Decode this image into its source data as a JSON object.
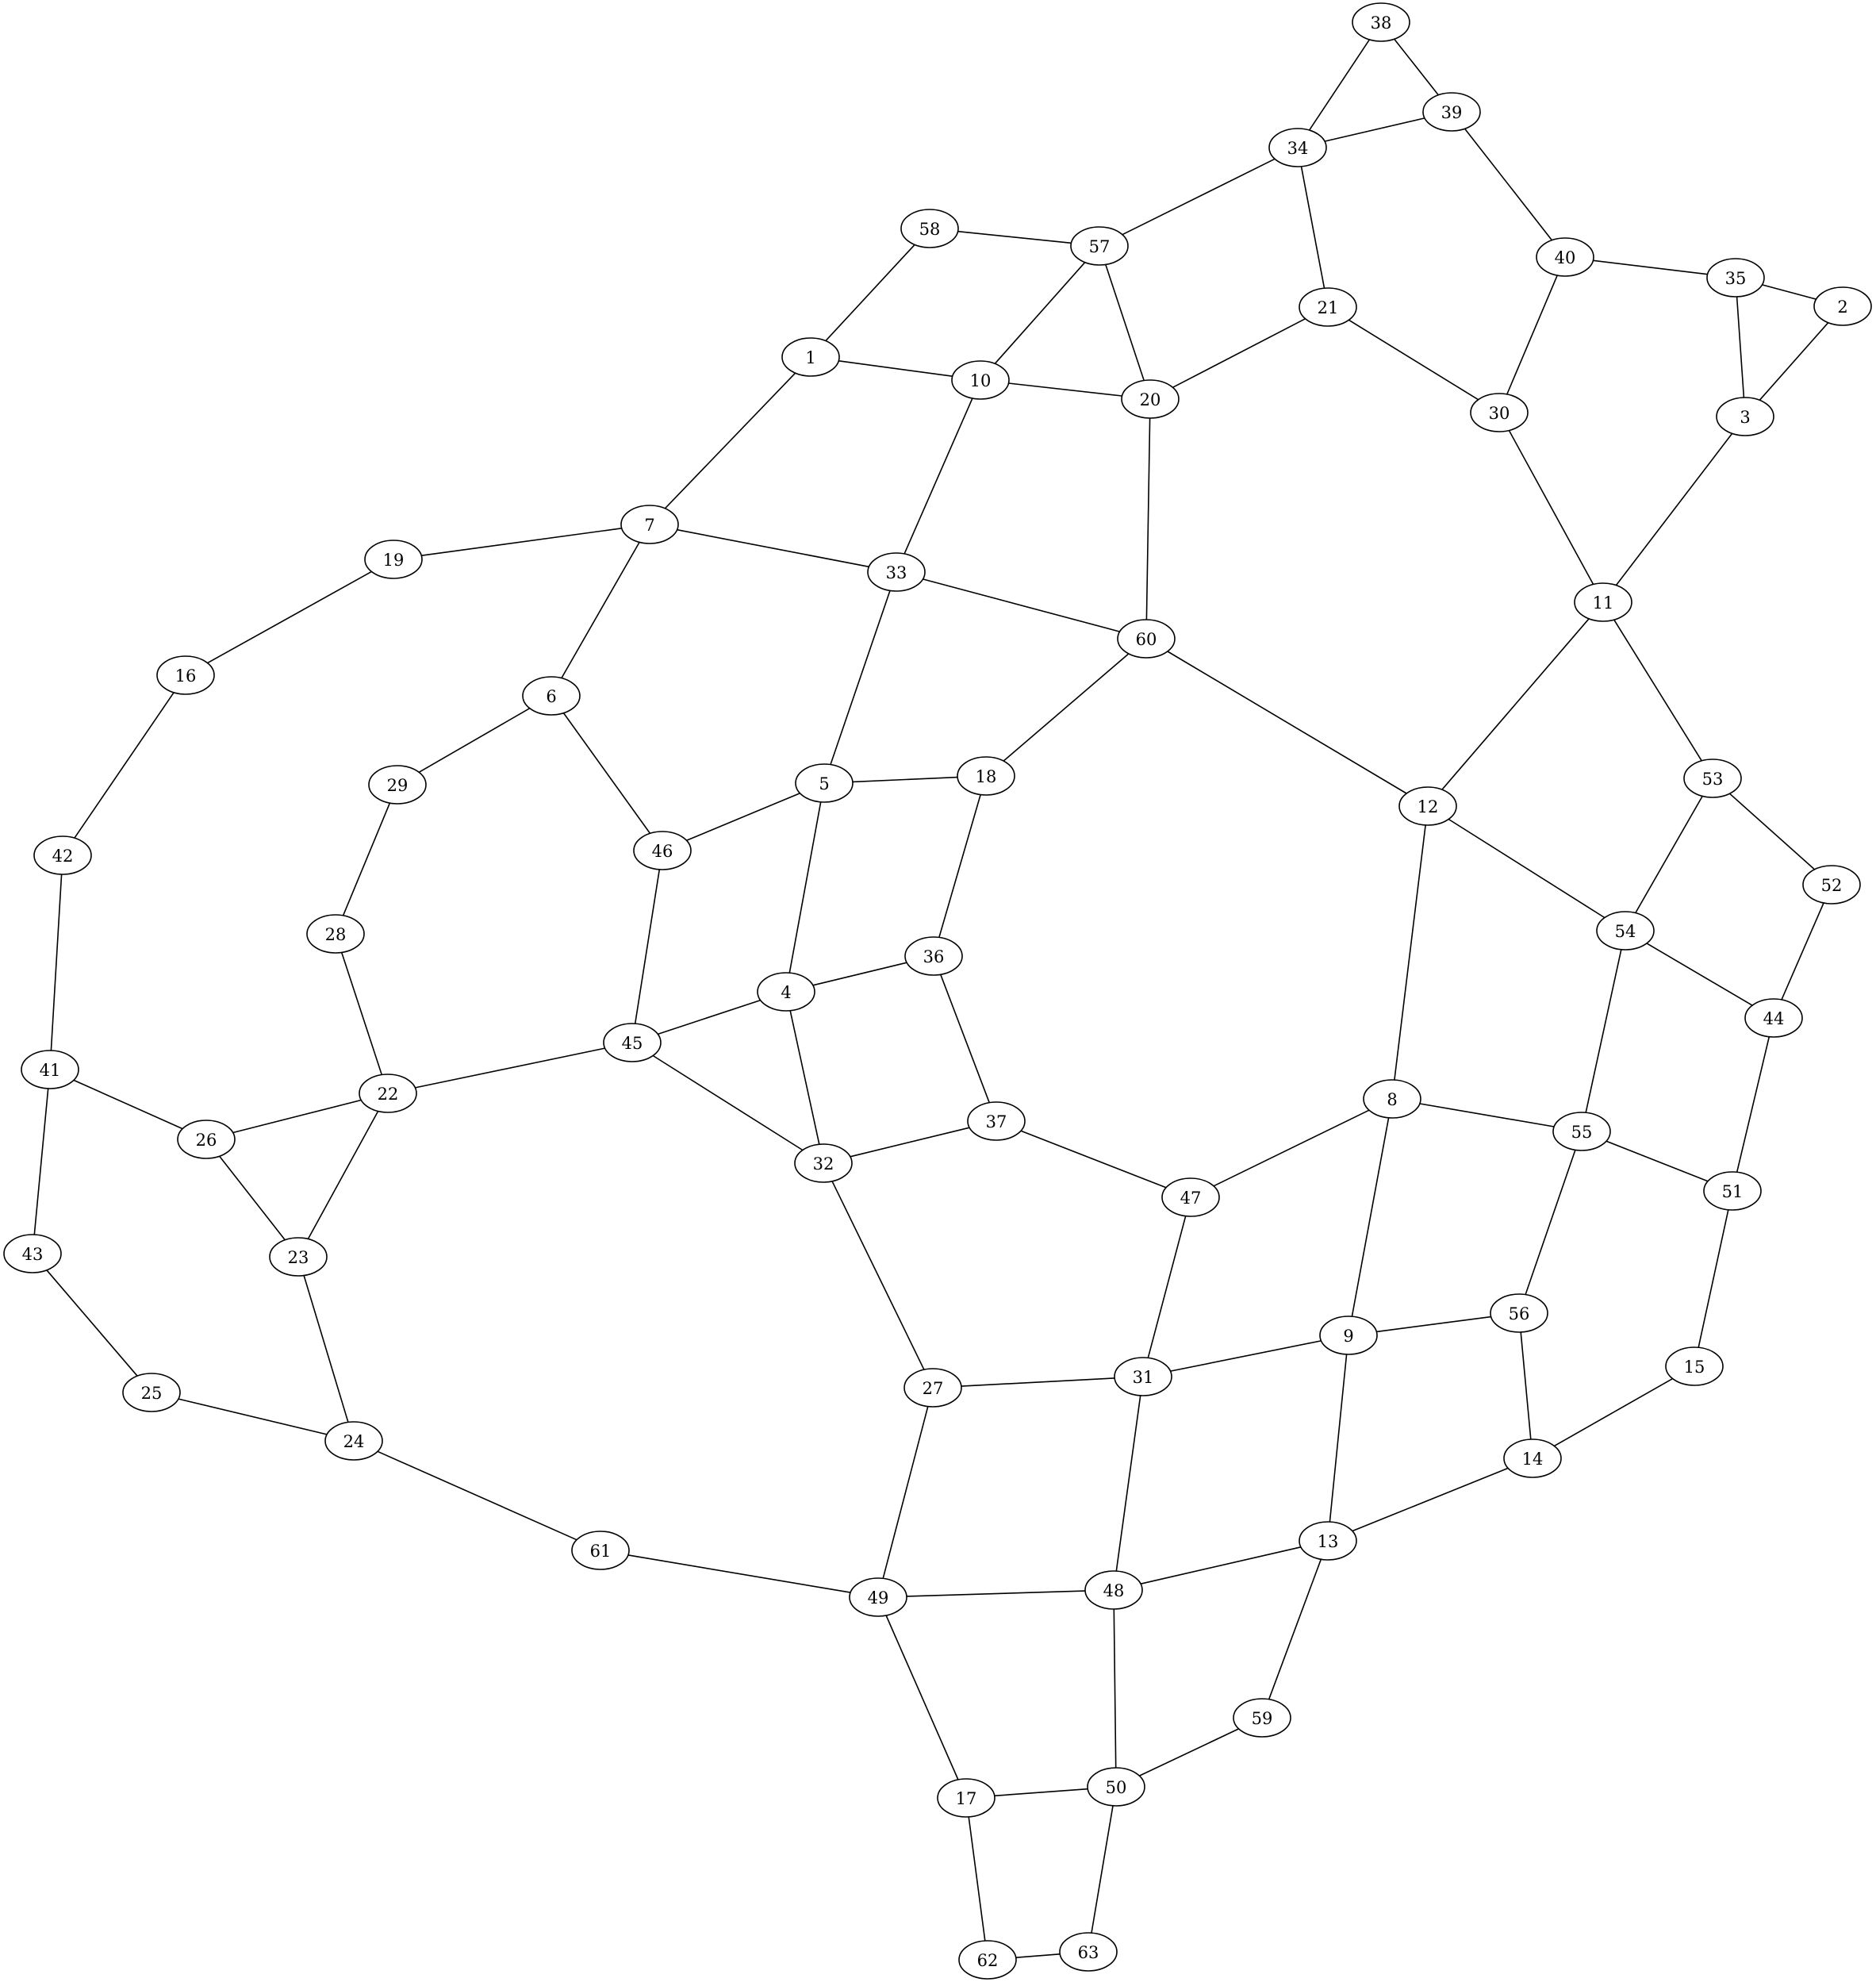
{
  "graph": {
    "nodes": [
      "1",
      "2",
      "3",
      "4",
      "5",
      "6",
      "7",
      "8",
      "9",
      "10",
      "11",
      "12",
      "13",
      "14",
      "15",
      "16",
      "17",
      "18",
      "19",
      "20",
      "21",
      "22",
      "23",
      "24",
      "25",
      "26",
      "27",
      "28",
      "29",
      "30",
      "31",
      "32",
      "33",
      "34",
      "35",
      "36",
      "37",
      "38",
      "39",
      "40",
      "41",
      "42",
      "43",
      "44",
      "45",
      "46",
      "47",
      "48",
      "49",
      "50",
      "51",
      "52",
      "53",
      "54",
      "55",
      "56",
      "57",
      "58",
      "59",
      "60",
      "61",
      "62",
      "63"
    ],
    "edges": [
      [
        "38",
        "34"
      ],
      [
        "38",
        "39"
      ],
      [
        "34",
        "39"
      ],
      [
        "34",
        "57"
      ],
      [
        "34",
        "21"
      ],
      [
        "39",
        "40"
      ],
      [
        "58",
        "57"
      ],
      [
        "58",
        "1"
      ],
      [
        "57",
        "10"
      ],
      [
        "57",
        "20"
      ],
      [
        "1",
        "10"
      ],
      [
        "1",
        "7"
      ],
      [
        "10",
        "20"
      ],
      [
        "10",
        "33"
      ],
      [
        "21",
        "20"
      ],
      [
        "21",
        "30"
      ],
      [
        "20",
        "60"
      ],
      [
        "40",
        "35"
      ],
      [
        "40",
        "30"
      ],
      [
        "35",
        "2"
      ],
      [
        "35",
        "3"
      ],
      [
        "2",
        "3"
      ],
      [
        "3",
        "11"
      ],
      [
        "30",
        "11"
      ],
      [
        "7",
        "19"
      ],
      [
        "7",
        "33"
      ],
      [
        "7",
        "6"
      ],
      [
        "19",
        "16"
      ],
      [
        "16",
        "42"
      ],
      [
        "33",
        "60"
      ],
      [
        "33",
        "5"
      ],
      [
        "60",
        "18"
      ],
      [
        "60",
        "12"
      ],
      [
        "11",
        "12"
      ],
      [
        "11",
        "53"
      ],
      [
        "6",
        "29"
      ],
      [
        "6",
        "46"
      ],
      [
        "29",
        "28"
      ],
      [
        "5",
        "18"
      ],
      [
        "5",
        "46"
      ],
      [
        "5",
        "4"
      ],
      [
        "18",
        "36"
      ],
      [
        "12",
        "54"
      ],
      [
        "12",
        "8"
      ],
      [
        "53",
        "54"
      ],
      [
        "53",
        "52"
      ],
      [
        "42",
        "41"
      ],
      [
        "46",
        "45"
      ],
      [
        "28",
        "22"
      ],
      [
        "36",
        "4"
      ],
      [
        "36",
        "37"
      ],
      [
        "4",
        "45"
      ],
      [
        "4",
        "32"
      ],
      [
        "54",
        "44"
      ],
      [
        "54",
        "55"
      ],
      [
        "52",
        "44"
      ],
      [
        "44",
        "51"
      ],
      [
        "45",
        "22"
      ],
      [
        "45",
        "32"
      ],
      [
        "41",
        "26"
      ],
      [
        "41",
        "43"
      ],
      [
        "22",
        "26"
      ],
      [
        "22",
        "23"
      ],
      [
        "26",
        "23"
      ],
      [
        "8",
        "47"
      ],
      [
        "8",
        "55"
      ],
      [
        "8",
        "9"
      ],
      [
        "37",
        "32"
      ],
      [
        "37",
        "47"
      ],
      [
        "55",
        "51"
      ],
      [
        "55",
        "56"
      ],
      [
        "32",
        "27"
      ],
      [
        "47",
        "31"
      ],
      [
        "51",
        "15"
      ],
      [
        "43",
        "25"
      ],
      [
        "23",
        "24"
      ],
      [
        "9",
        "56"
      ],
      [
        "9",
        "31"
      ],
      [
        "9",
        "13"
      ],
      [
        "56",
        "14"
      ],
      [
        "15",
        "14"
      ],
      [
        "27",
        "31"
      ],
      [
        "27",
        "49"
      ],
      [
        "25",
        "24"
      ],
      [
        "24",
        "61"
      ],
      [
        "31",
        "48"
      ],
      [
        "14",
        "13"
      ],
      [
        "13",
        "48"
      ],
      [
        "13",
        "59"
      ],
      [
        "61",
        "49"
      ],
      [
        "49",
        "48"
      ],
      [
        "49",
        "17"
      ],
      [
        "48",
        "50"
      ],
      [
        "59",
        "50"
      ],
      [
        "50",
        "17"
      ],
      [
        "50",
        "63"
      ],
      [
        "17",
        "62"
      ],
      [
        "62",
        "63"
      ]
    ]
  }
}
